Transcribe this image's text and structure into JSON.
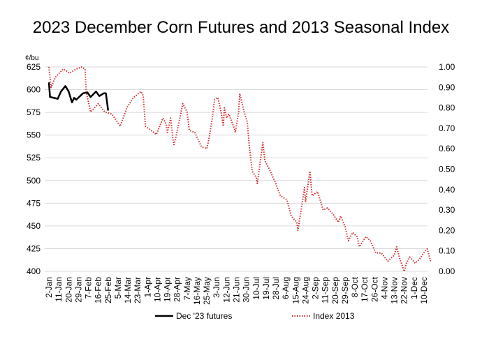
{
  "chart_data": {
    "type": "line",
    "title": "2023 December Corn Futures and 2013 Seasonal Index",
    "y_left_unit": "¢/bu",
    "y_left_lim": [
      400,
      625
    ],
    "y_left_ticks": [
      "400",
      "425",
      "450",
      "475",
      "500",
      "525",
      "550",
      "575",
      "600",
      "625"
    ],
    "y_right_lim": [
      0,
      1
    ],
    "y_right_ticks": [
      "0.00",
      "0.10",
      "0.20",
      "0.30",
      "0.40",
      "0.50",
      "0.60",
      "0.70",
      "0.80",
      "0.90",
      "1.00"
    ],
    "x_ticks": [
      "2-Jan",
      "11-Jan",
      "20-Jan",
      "29-Jan",
      "7-Feb",
      "16-Feb",
      "25-Feb",
      "5-Mar",
      "14-Mar",
      "23-Mar",
      "1-Apr",
      "10-Apr",
      "19-Apr",
      "28-Apr",
      "7-May",
      "16-May",
      "25-May",
      "3-Jun",
      "12-Jun",
      "21-Jun",
      "30-Jun",
      "10-Jul",
      "19-Jul",
      "28-Jul",
      "6-Aug",
      "15-Aug",
      "24-Aug",
      "2-Sep",
      "11-Sep",
      "20-Sep",
      "29-Sep",
      "8-Oct",
      "17-Oct",
      "26-Oct",
      "4-Nov",
      "13-Nov",
      "22-Nov",
      "1-Dec",
      "10-Dec"
    ],
    "grid": "horizontal",
    "legend": "bottom",
    "series": [
      {
        "name": "Dec '23 futures",
        "axis": "left",
        "color": "#000000",
        "style": "solid",
        "points": [
          [
            "2-Jan",
            608
          ],
          [
            "3-Jan",
            592
          ],
          [
            "10-Jan",
            590
          ],
          [
            "13-Jan",
            598
          ],
          [
            "17-Jan",
            604
          ],
          [
            "20-Jan",
            598
          ],
          [
            "23-Jan",
            586
          ],
          [
            "25-Jan",
            591
          ],
          [
            "27-Jan",
            589
          ],
          [
            "2-Feb",
            596
          ],
          [
            "6-Feb",
            597
          ],
          [
            "9-Feb",
            592
          ],
          [
            "14-Feb",
            598
          ],
          [
            "17-Feb",
            593
          ],
          [
            "21-Feb",
            596
          ],
          [
            "23-Feb",
            596
          ],
          [
            "25-Feb",
            577
          ]
        ]
      },
      {
        "name": "Index 2013",
        "axis": "right",
        "color": "#d42a2a",
        "style": "dotted",
        "points": [
          [
            "2-Jan",
            1.0
          ],
          [
            "4-Jan",
            0.9
          ],
          [
            "8-Jan",
            0.95
          ],
          [
            "15-Jan",
            0.99
          ],
          [
            "21-Jan",
            0.97
          ],
          [
            "27-Jan",
            0.99
          ],
          [
            "1-Feb",
            1.0
          ],
          [
            "4-Feb",
            0.99
          ],
          [
            "5-Feb",
            0.88
          ],
          [
            "9-Feb",
            0.78
          ],
          [
            "16-Feb",
            0.82
          ],
          [
            "22-Feb",
            0.78
          ],
          [
            "28-Feb",
            0.77
          ],
          [
            "7-Mar",
            0.71
          ],
          [
            "13-Mar",
            0.8
          ],
          [
            "19-Mar",
            0.85
          ],
          [
            "26-Mar",
            0.88
          ],
          [
            "28-Mar",
            0.86
          ],
          [
            "30-Mar",
            0.71
          ],
          [
            "4-Apr",
            0.69
          ],
          [
            "9-Apr",
            0.67
          ],
          [
            "15-Apr",
            0.75
          ],
          [
            "18-Apr",
            0.72
          ],
          [
            "19-Apr",
            0.68
          ],
          [
            "22-Apr",
            0.75
          ],
          [
            "24-Apr",
            0.65
          ],
          [
            "25-Apr",
            0.62
          ],
          [
            "27-Apr",
            0.66
          ],
          [
            "30-Apr",
            0.74
          ],
          [
            "3-May",
            0.82
          ],
          [
            "7-May",
            0.78
          ],
          [
            "9-May",
            0.69
          ],
          [
            "14-May",
            0.68
          ],
          [
            "20-May",
            0.61
          ],
          [
            "25-May",
            0.6
          ],
          [
            "27-May",
            0.65
          ],
          [
            "30-May",
            0.75
          ],
          [
            "1-Jun",
            0.84
          ],
          [
            "4-Jun",
            0.85
          ],
          [
            "7-Jun",
            0.78
          ],
          [
            "9-Jun",
            0.71
          ],
          [
            "10-Jun",
            0.8
          ],
          [
            "12-Jun",
            0.75
          ],
          [
            "14-Jun",
            0.77
          ],
          [
            "19-Jun",
            0.7
          ],
          [
            "20-Jun",
            0.68
          ],
          [
            "23-Jun",
            0.78
          ],
          [
            "24-Jun",
            0.87
          ],
          [
            "28-Jun",
            0.78
          ],
          [
            "1-Jul",
            0.73
          ],
          [
            "3-Jul",
            0.61
          ],
          [
            "6-Jul",
            0.49
          ],
          [
            "10-Jul",
            0.46
          ],
          [
            "11-Jul",
            0.43
          ],
          [
            "13-Jul",
            0.51
          ],
          [
            "16-Jul",
            0.63
          ],
          [
            "18-Jul",
            0.54
          ],
          [
            "22-Jul",
            0.5
          ],
          [
            "27-Jul",
            0.44
          ],
          [
            "1-Aug",
            0.37
          ],
          [
            "7-Aug",
            0.35
          ],
          [
            "11-Aug",
            0.27
          ],
          [
            "16-Aug",
            0.24
          ],
          [
            "17-Aug",
            0.2
          ],
          [
            "20-Aug",
            0.3
          ],
          [
            "23-Aug",
            0.41
          ],
          [
            "24-Aug",
            0.34
          ],
          [
            "28-Aug",
            0.49
          ],
          [
            "30-Aug",
            0.37
          ],
          [
            "4-Sep",
            0.39
          ],
          [
            "9-Sep",
            0.3
          ],
          [
            "13-Sep",
            0.31
          ],
          [
            "18-Sep",
            0.28
          ],
          [
            "23-Sep",
            0.24
          ],
          [
            "25-Sep",
            0.27
          ],
          [
            "29-Sep",
            0.22
          ],
          [
            "2-Oct",
            0.15
          ],
          [
            "6-Oct",
            0.19
          ],
          [
            "10-Oct",
            0.17
          ],
          [
            "12-Oct",
            0.12
          ],
          [
            "18-Oct",
            0.17
          ],
          [
            "22-Oct",
            0.15
          ],
          [
            "27-Oct",
            0.09
          ],
          [
            "1-Nov",
            0.09
          ],
          [
            "7-Nov",
            0.05
          ],
          [
            "13-Nov",
            0.08
          ],
          [
            "15-Nov",
            0.12
          ],
          [
            "18-Nov",
            0.06
          ],
          [
            "22-Nov",
            0.0
          ],
          [
            "24-Nov",
            0.04
          ],
          [
            "27-Nov",
            0.07
          ],
          [
            "2-Dec",
            0.04
          ],
          [
            "6-Dec",
            0.06
          ],
          [
            "11-Dec",
            0.1
          ],
          [
            "13-Dec",
            0.11
          ],
          [
            "16-Dec",
            0.05
          ]
        ]
      }
    ]
  }
}
